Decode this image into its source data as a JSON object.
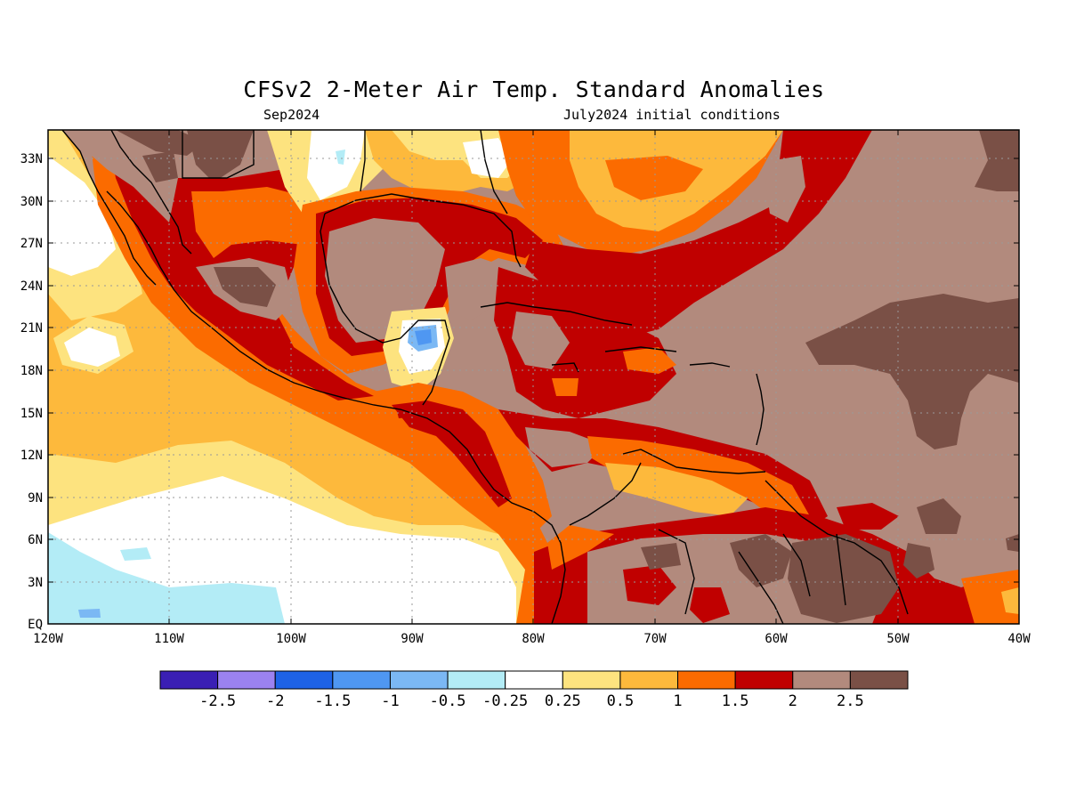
{
  "title": "CFSv2 2-Meter Air Temp. Standard Anomalies",
  "subtitle_left": "Sep2024",
  "subtitle_right": "July2024 initial conditions",
  "lat_labels": [
    "33N",
    "30N",
    "27N",
    "24N",
    "21N",
    "18N",
    "15N",
    "12N",
    "9N",
    "6N",
    "3N",
    "EQ"
  ],
  "lon_labels": [
    "120W",
    "110W",
    "100W",
    "90W",
    "80W",
    "70W",
    "60W",
    "50W",
    "40W"
  ],
  "colorbar": {
    "colors": [
      "#3a1fb4",
      "#9b82f0",
      "#1e62e6",
      "#4f97f2",
      "#7bb8f4",
      "#b3ecf6",
      "#ffffff",
      "#fde37f",
      "#fdb93c",
      "#fb6b00",
      "#c00000",
      "#b28a7d",
      "#7a5046"
    ],
    "labels": [
      "-2.5",
      "-2",
      "-1.5",
      "-1",
      "-0.5",
      "-0.25",
      "0.25",
      "0.5",
      "1",
      "1.5",
      "2",
      "2.5"
    ]
  }
}
